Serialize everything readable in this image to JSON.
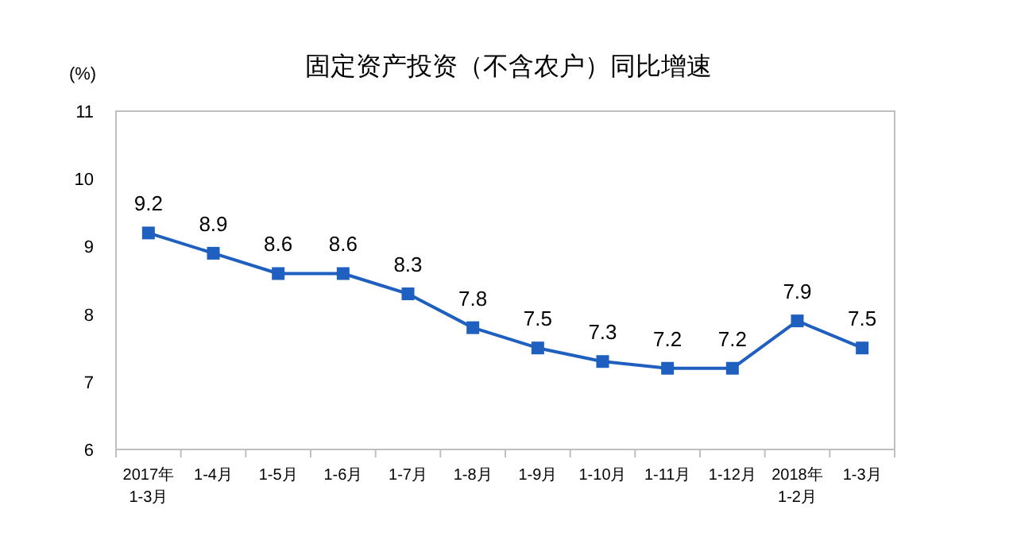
{
  "chart_data": {
    "type": "line",
    "title": "固定资产投资（不含农户）同比增速",
    "ylabel": "(%)",
    "categories": [
      "2017年\n1-3月",
      "1-4月",
      "1-5月",
      "1-6月",
      "1-7月",
      "1-8月",
      "1-9月",
      "1-10月",
      "1-11月",
      "1-12月",
      "2018年\n1-2月",
      "1-3月"
    ],
    "series": [
      {
        "color": "#1f5fbf",
        "values": [
          9.2,
          8.9,
          8.6,
          8.6,
          8.3,
          7.8,
          7.5,
          7.3,
          7.2,
          7.2,
          7.9,
          7.5
        ]
      }
    ],
    "ylim": [
      6,
      11
    ],
    "yticks": [
      6,
      7,
      8,
      9,
      10,
      11
    ],
    "marker": "square",
    "line_style": "solid",
    "data_labels": true,
    "grid": false
  }
}
